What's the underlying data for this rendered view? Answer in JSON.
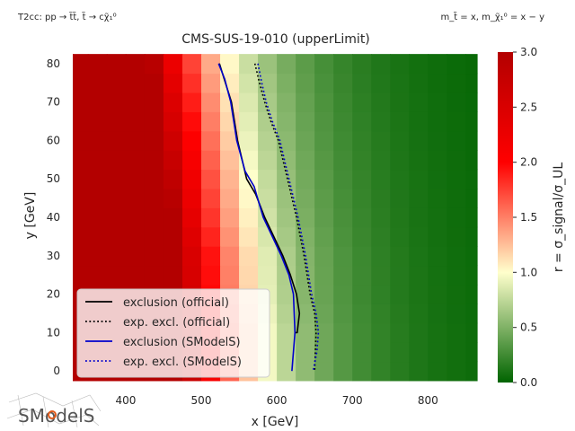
{
  "chart_data": {
    "type": "heatmap",
    "title": "CMS-SUS-19-010 (upperLimit)",
    "top_left_note": "T2cc: pp → t̃t̃, t̃ → cχ̃₁⁰",
    "top_right_note": "m_t̃ = x, m_χ̃₁⁰ = x − y",
    "xlabel": "x [GeV]",
    "ylabel": "y [GeV]",
    "colorbar_label": "r = σ_signal/σ_UL",
    "xlim": [
      330,
      865
    ],
    "ylim": [
      -3,
      83
    ],
    "xticks": [
      "400",
      "500",
      "600",
      "700",
      "800"
    ],
    "yticks": [
      "0",
      "10",
      "20",
      "30",
      "40",
      "50",
      "60",
      "70",
      "80"
    ],
    "colorbar_ticks": [
      "0.0",
      "0.5",
      "1.0",
      "1.5",
      "2.0",
      "2.5",
      "3.0"
    ],
    "colorbar_range": [
      0,
      3
    ],
    "colormap": [
      "#006400",
      "#ffffcc",
      "#ff0000",
      "#b30000"
    ],
    "grid": {
      "x_start": 325,
      "x_step": 25,
      "y_start": -2.5,
      "y_step": 5,
      "rows": 17,
      "boundary_points": [
        [
          0,
          583
        ],
        [
          10,
          583
        ],
        [
          20,
          577
        ],
        [
          30,
          575
        ],
        [
          40,
          568
        ],
        [
          50,
          562
        ],
        [
          60,
          555
        ],
        [
          70,
          548
        ],
        [
          80,
          540
        ]
      ]
    },
    "series": [
      {
        "name": "exclusion (official)",
        "color": "#000000",
        "dash": "solid",
        "x": [
          524,
          532,
          540,
          548,
          560,
          572,
          584,
          596,
          608,
          618,
          626,
          630,
          627,
          625
        ],
        "y": [
          80,
          75,
          70,
          60,
          50,
          46,
          40,
          35,
          30,
          25,
          20,
          15,
          10,
          10
        ]
      },
      {
        "name": "exp. excl. (official)",
        "color": "#000000",
        "dash": "dotted",
        "x": [
          571,
          577,
          584,
          592,
          602,
          614,
          626,
          636,
          644,
          650,
          652,
          650
        ],
        "y": [
          80,
          75,
          70,
          65,
          60,
          50,
          40,
          30,
          20,
          15,
          10,
          0
        ]
      },
      {
        "name": "exclusion (SModelS)",
        "color": "#0000cc",
        "dash": "solid",
        "x": [
          523,
          531,
          539,
          547,
          558,
          570,
          582,
          594,
          606,
          616,
          622,
          624,
          620
        ],
        "y": [
          80,
          76,
          70,
          60,
          52,
          48,
          40,
          35,
          30,
          25,
          20,
          10,
          0
        ]
      },
      {
        "name": "exp. excl. (SModelS)",
        "color": "#0000cc",
        "dash": "dotted",
        "x": [
          575,
          580,
          586,
          594,
          604,
          616,
          628,
          638,
          646,
          652,
          655,
          653,
          648
        ],
        "y": [
          80,
          75,
          70,
          65,
          60,
          50,
          40,
          30,
          20,
          15,
          10,
          5,
          0
        ]
      }
    ],
    "legend_location": "lower-left"
  },
  "logo": {
    "text": "SModelS"
  }
}
